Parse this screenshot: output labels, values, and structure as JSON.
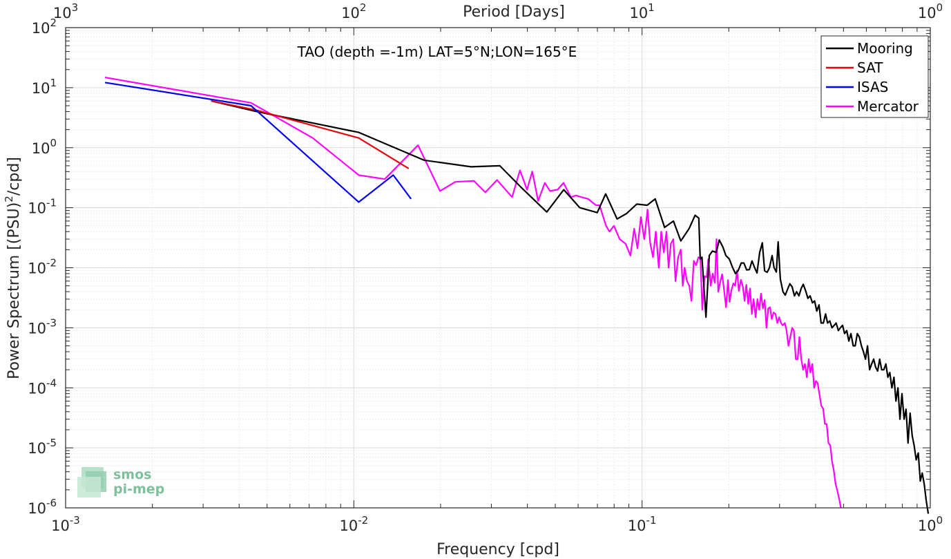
{
  "chart_data": {
    "type": "line",
    "title": "TAO (depth =-1m) LAT=5°N;LON=165°E",
    "xlabel": "Frequency [cpd]",
    "ylabel": "Power Spectrum [(PSU)",
    "ylabel_sup": "2",
    "ylabel_tail": "/cpd]",
    "top_xlabel": "Period [Days]",
    "xscale": "log",
    "yscale": "log",
    "xlim": [
      0.001,
      1
    ],
    "ylim": [
      1e-06,
      100
    ],
    "grid": true,
    "legend_position": "top-right",
    "x_ticks": [
      {
        "b": "10",
        "e": "-3"
      },
      {
        "b": "10",
        "e": "-2"
      },
      {
        "b": "10",
        "e": "-1"
      },
      {
        "b": "10",
        "e": "0"
      }
    ],
    "top_ticks": [
      {
        "b": "10",
        "e": "3"
      },
      {
        "b": "10",
        "e": "2"
      },
      {
        "b": "10",
        "e": "1"
      },
      {
        "b": "10",
        "e": "0"
      }
    ],
    "y_ticks": [
      {
        "b": "10",
        "e": "-6"
      },
      {
        "b": "10",
        "e": "-5"
      },
      {
        "b": "10",
        "e": "-4"
      },
      {
        "b": "10",
        "e": "-3"
      },
      {
        "b": "10",
        "e": "-2"
      },
      {
        "b": "10",
        "e": "-1"
      },
      {
        "b": "10",
        "e": "0"
      },
      {
        "b": "10",
        "e": "1"
      },
      {
        "b": "10",
        "e": "2"
      }
    ],
    "series": [
      {
        "name": "Mooring",
        "color": "#000000",
        "points": [
          [
            0.0032,
            6.0
          ],
          [
            0.0046,
            4.0
          ],
          [
            0.0104,
            1.8
          ],
          [
            0.0175,
            0.62
          ],
          [
            0.0255,
            0.48
          ],
          [
            0.0321,
            0.5
          ],
          [
            0.038,
            0.22
          ],
          [
            0.0467,
            0.085
          ],
          [
            0.0535,
            0.2
          ],
          [
            0.0608,
            0.1
          ],
          [
            0.0699,
            0.083
          ],
          [
            0.0748,
            0.17
          ],
          [
            0.0819,
            0.065
          ],
          [
            0.0884,
            0.08
          ],
          [
            0.0958,
            0.115
          ],
          [
            0.1042,
            0.11
          ],
          [
            0.1111,
            0.14
          ],
          [
            0.1197,
            0.047
          ],
          [
            0.1285,
            0.06
          ],
          [
            0.1363,
            0.028
          ],
          [
            0.1456,
            0.045
          ],
          [
            0.1528,
            0.075
          ],
          [
            0.1573,
            0.067
          ],
          [
            0.1592,
            0.014
          ],
          [
            0.1614,
            0.015
          ],
          [
            0.1666,
            0.0015
          ],
          [
            0.1711,
            0.016
          ],
          [
            0.1755,
            0.019
          ],
          [
            0.1808,
            0.018
          ],
          [
            0.1853,
            0.029
          ],
          [
            0.1908,
            0.022
          ],
          [
            0.1953,
            0.016
          ],
          [
            0.2008,
            0.014
          ],
          [
            0.2063,
            0.01
          ],
          [
            0.2109,
            0.008
          ],
          [
            0.2154,
            0.0089
          ],
          [
            0.2209,
            0.012
          ],
          [
            0.2256,
            0.012
          ],
          [
            0.2306,
            0.0092
          ],
          [
            0.2357,
            0.0093
          ],
          [
            0.2407,
            0.013
          ],
          [
            0.2458,
            0.01
          ],
          [
            0.2505,
            0.0082
          ],
          [
            0.2559,
            0.018
          ],
          [
            0.2614,
            0.026
          ],
          [
            0.2661,
            0.0089
          ],
          [
            0.2717,
            0.0084
          ],
          [
            0.2767,
            0.01
          ],
          [
            0.2826,
            0.016
          ],
          [
            0.2871,
            0.01
          ],
          [
            0.2924,
            0.0085
          ],
          [
            0.2965,
            0.027
          ],
          [
            0.3018,
            0.0065
          ],
          [
            0.3082,
            0.004
          ],
          [
            0.3139,
            0.0035
          ],
          [
            0.3199,
            0.0044
          ],
          [
            0.3258,
            0.0054
          ],
          [
            0.3318,
            0.0048
          ],
          [
            0.3378,
            0.0034
          ],
          [
            0.3439,
            0.004
          ],
          [
            0.3501,
            0.0034
          ],
          [
            0.3563,
            0.0045
          ],
          [
            0.3626,
            0.0053
          ],
          [
            0.3697,
            0.0041
          ],
          [
            0.3762,
            0.0031
          ],
          [
            0.3828,
            0.0034
          ],
          [
            0.3901,
            0.0026
          ],
          [
            0.3969,
            0.0028
          ],
          [
            0.4036,
            0.0019
          ],
          [
            0.4111,
            0.0024
          ],
          [
            0.418,
            0.0012
          ],
          [
            0.4256,
            0.0012
          ],
          [
            0.4333,
            0.0017
          ],
          [
            0.4402,
            0.0012
          ],
          [
            0.4481,
            0.0013
          ],
          [
            0.4561,
            0.001
          ],
          [
            0.4642,
            0.0011
          ],
          [
            0.4715,
            0.0012
          ],
          [
            0.4799,
            0.0009
          ],
          [
            0.4876,
            0.001
          ],
          [
            0.4962,
            0.0011
          ],
          [
            0.5042,
            0.0008
          ],
          [
            0.513,
            0.0009
          ],
          [
            0.5219,
            0.0006
          ],
          [
            0.5305,
            0.0008
          ],
          [
            0.5402,
            0.0005
          ],
          [
            0.5491,
            0.0005
          ],
          [
            0.5582,
            0.0008
          ],
          [
            0.5674,
            0.0007
          ],
          [
            0.5768,
            0.0005
          ],
          [
            0.5862,
            0.0004
          ],
          [
            0.596,
            0.0003
          ],
          [
            0.6057,
            0.0005
          ],
          [
            0.6157,
            0.0002
          ],
          [
            0.626,
            0.00025
          ],
          [
            0.6361,
            0.0003
          ],
          [
            0.6463,
            0.00022
          ],
          [
            0.6568,
            0.00019
          ],
          [
            0.6674,
            0.0003
          ],
          [
            0.6783,
            0.0002
          ],
          [
            0.6898,
            0.0002
          ],
          [
            0.7012,
            0.00025
          ],
          [
            0.7125,
            0.00015
          ],
          [
            0.7237,
            0.00018
          ],
          [
            0.7358,
            0.0001
          ],
          [
            0.7482,
            0.00015
          ],
          [
            0.7601,
            6e-05
          ],
          [
            0.7726,
            0.0001
          ],
          [
            0.7851,
            3e-05
          ],
          [
            0.7977,
            8e-05
          ],
          [
            0.8113,
            3e-05
          ],
          [
            0.824,
            4.4e-05
          ],
          [
            0.8374,
            1.2e-05
          ],
          [
            0.8511,
            3.8e-05
          ],
          [
            0.8652,
            1.6e-05
          ],
          [
            0.8791,
            1.1e-05
          ],
          [
            0.8936,
            6.3e-06
          ],
          [
            0.9083,
            8.2e-06
          ],
          [
            0.9229,
            2.8e-06
          ],
          [
            0.9376,
            3.8e-06
          ],
          [
            0.9526,
            2.5e-06
          ],
          [
            0.9683,
            1.3e-06
          ],
          [
            0.9841,
            8e-07
          ]
        ]
      },
      {
        "name": "SAT",
        "color": "#e8000b",
        "points": [
          [
            0.0032,
            6.0
          ],
          [
            0.0046,
            4.2
          ],
          [
            0.0104,
            1.45
          ],
          [
            0.0155,
            0.45
          ]
        ]
      },
      {
        "name": "ISAS",
        "color": "#0000ee",
        "points": [
          [
            0.00137,
            12.2
          ],
          [
            0.0044,
            5.0
          ],
          [
            0.0104,
            0.124
          ],
          [
            0.0137,
            0.35
          ],
          [
            0.0158,
            0.14
          ]
        ]
      },
      {
        "name": "Mercator",
        "color": "#ff00ff",
        "points": [
          [
            0.00137,
            14.8
          ],
          [
            0.0044,
            5.6
          ],
          [
            0.0072,
            1.45
          ],
          [
            0.0104,
            0.35
          ],
          [
            0.0128,
            0.3
          ],
          [
            0.0167,
            1.1
          ],
          [
            0.0199,
            0.19
          ],
          [
            0.0225,
            0.27
          ],
          [
            0.0261,
            0.28
          ],
          [
            0.0286,
            0.18
          ],
          [
            0.0314,
            0.29
          ],
          [
            0.0354,
            0.15
          ],
          [
            0.0377,
            0.42
          ],
          [
            0.0399,
            0.2
          ],
          [
            0.0416,
            0.4
          ],
          [
            0.0436,
            0.13
          ],
          [
            0.046,
            0.26
          ],
          [
            0.0479,
            0.19
          ],
          [
            0.0509,
            0.2
          ],
          [
            0.0534,
            0.26
          ],
          [
            0.0566,
            0.15
          ],
          [
            0.059,
            0.16
          ],
          [
            0.0617,
            0.15
          ],
          [
            0.065,
            0.14
          ],
          [
            0.0692,
            0.11
          ],
          [
            0.0712,
            0.11
          ],
          [
            0.075,
            0.05
          ],
          [
            0.0771,
            0.04
          ],
          [
            0.0799,
            0.05
          ],
          [
            0.0836,
            0.03
          ],
          [
            0.0877,
            0.025
          ],
          [
            0.0911,
            0.016
          ],
          [
            0.0939,
            0.045
          ],
          [
            0.0964,
            0.021
          ],
          [
            0.0991,
            0.07
          ],
          [
            0.1018,
            0.03
          ],
          [
            0.1045,
            0.093
          ],
          [
            0.1067,
            0.026
          ],
          [
            0.1091,
            0.015
          ],
          [
            0.1116,
            0.04
          ],
          [
            0.1143,
            0.01
          ],
          [
            0.1166,
            0.04
          ],
          [
            0.119,
            0.018
          ],
          [
            0.1215,
            0.04
          ],
          [
            0.1236,
            0.01
          ],
          [
            0.1258,
            0.025
          ],
          [
            0.1284,
            0.03
          ],
          [
            0.1306,
            0.006
          ],
          [
            0.1334,
            0.015
          ],
          [
            0.1362,
            0.02
          ],
          [
            0.1384,
            0.005
          ],
          [
            0.1405,
            0.01
          ],
          [
            0.1432,
            0.006
          ],
          [
            0.1459,
            0.005
          ],
          [
            0.1484,
            0.0028
          ],
          [
            0.1512,
            0.013
          ],
          [
            0.154,
            0.011
          ],
          [
            0.1569,
            0.015
          ],
          [
            0.1594,
            0.014
          ],
          [
            0.1618,
            0.002
          ],
          [
            0.1647,
            0.0072
          ],
          [
            0.1675,
            0.007
          ],
          [
            0.1699,
            0.014
          ],
          [
            0.1731,
            0.005
          ],
          [
            0.1759,
            0.008
          ],
          [
            0.1789,
            0.0056
          ],
          [
            0.1813,
            0.03
          ],
          [
            0.1838,
            0.004
          ],
          [
            0.1868,
            0.0058
          ],
          [
            0.1896,
            0.0078
          ],
          [
            0.1926,
            0.0042
          ],
          [
            0.1956,
            0.0022
          ],
          [
            0.1987,
            0.0062
          ],
          [
            0.2012,
            0.0027
          ],
          [
            0.2041,
            0.0042
          ],
          [
            0.2074,
            0.0055
          ],
          [
            0.2104,
            0.005
          ],
          [
            0.2136,
            0.009
          ],
          [
            0.2167,
            0.0041
          ],
          [
            0.2203,
            0.0063
          ],
          [
            0.2235,
            0.005
          ],
          [
            0.227,
            0.0028
          ],
          [
            0.23,
            0.0052
          ],
          [
            0.2336,
            0.0025
          ],
          [
            0.2369,
            0.0045
          ],
          [
            0.2405,
            0.0017
          ],
          [
            0.2438,
            0.003
          ],
          [
            0.2477,
            0.0015
          ],
          [
            0.2515,
            0.003
          ],
          [
            0.2549,
            0.002
          ],
          [
            0.2586,
            0.0037
          ],
          [
            0.2627,
            0.0021
          ],
          [
            0.2663,
            0.0029
          ],
          [
            0.2702,
            0.001
          ],
          [
            0.274,
            0.0021
          ],
          [
            0.278,
            0.0022
          ],
          [
            0.2818,
            0.0014
          ],
          [
            0.2861,
            0.0018
          ],
          [
            0.2902,
            0.0017
          ],
          [
            0.2948,
            0.0012
          ],
          [
            0.299,
            0.0015
          ],
          [
            0.3034,
            0.0012
          ],
          [
            0.3078,
            0.0011
          ],
          [
            0.3128,
            0.0012
          ],
          [
            0.3172,
            0.0009
          ],
          [
            0.3219,
            0.0005
          ],
          [
            0.3268,
            0.0007
          ],
          [
            0.3318,
            0.001
          ],
          [
            0.3364,
            0.0009
          ],
          [
            0.3416,
            0.0003
          ],
          [
            0.3466,
            0.0003
          ],
          [
            0.3515,
            0.0007
          ],
          [
            0.3568,
            0.0003
          ],
          [
            0.3621,
            0.0002
          ],
          [
            0.3674,
            0.00025
          ],
          [
            0.3731,
            0.00015
          ],
          [
            0.3786,
            0.0003
          ],
          [
            0.3838,
            0.00018
          ],
          [
            0.3896,
            0.00025
          ],
          [
            0.3955,
            0.0001
          ],
          [
            0.401,
            0.00013
          ],
          [
            0.4067,
            0.00012
          ],
          [
            0.4123,
            8e-05
          ],
          [
            0.4187,
            5e-05
          ],
          [
            0.4249,
            4.5e-05
          ],
          [
            0.4309,
            2.5e-05
          ],
          [
            0.4372,
            2.5e-05
          ],
          [
            0.4433,
            1.2e-05
          ],
          [
            0.4499,
            1.1e-05
          ],
          [
            0.4561,
            6e-06
          ],
          [
            0.4626,
            4.2e-06
          ],
          [
            0.4693,
            2.5e-06
          ],
          [
            0.4763,
            1.9e-06
          ],
          [
            0.4831,
            1.4e-06
          ],
          [
            0.4897,
            1e-06
          ]
        ]
      }
    ],
    "legend": [
      "Mooring",
      "SAT",
      "ISAS",
      "Mercator"
    ]
  },
  "logo": {
    "line1": "smos",
    "line2": "pi-mep"
  }
}
